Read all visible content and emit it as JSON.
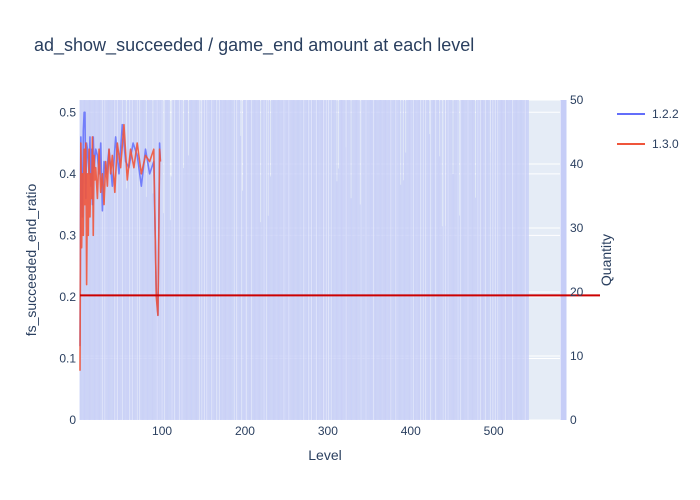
{
  "chart_data": {
    "type": "line",
    "title": "ad_show_succeeded / game_end amount at each level",
    "xlabel": "Level",
    "ylabel": "fs_succeeded_end_ratio",
    "y2label": "Quantity",
    "xlim": [
      1,
      580
    ],
    "ylim": [
      0,
      0.52
    ],
    "y2lim": [
      0,
      50
    ],
    "x_ticks": [
      "100",
      "200",
      "300",
      "400",
      "500"
    ],
    "y_ticks": [
      "0",
      "0.1",
      "0.2",
      "0.3",
      "0.4",
      "0.5"
    ],
    "y2_ticks": [
      "0",
      "10",
      "20",
      "30",
      "40",
      "50"
    ],
    "grid": true,
    "legend": "top-right",
    "colors": {
      "series_1_2_2": "#636efa",
      "series_1_3_0": "#ef553b",
      "quantity_bars": "#c6cdf7",
      "threshold_line": "#cc0000",
      "plot_bg": "#e5ecf6",
      "grid": "#ffffff"
    },
    "series": [
      {
        "name": "1.2.2",
        "axis": "y",
        "x": [
          1,
          2,
          3,
          4,
          5,
          6,
          7,
          8,
          9,
          10,
          11,
          12,
          13,
          14,
          15,
          16,
          17,
          18,
          20,
          22,
          24,
          26,
          28,
          30,
          33,
          36,
          40,
          44,
          48,
          52,
          56,
          60,
          65,
          70,
          75,
          80,
          85,
          90,
          93,
          95,
          96,
          97,
          98
        ],
        "y": [
          0.12,
          0.46,
          0.38,
          0.33,
          0.47,
          0.5,
          0.5,
          0.36,
          0.45,
          0.44,
          0.42,
          0.4,
          0.46,
          0.38,
          0.44,
          0.35,
          0.46,
          0.41,
          0.44,
          0.43,
          0.4,
          0.45,
          0.34,
          0.42,
          0.4,
          0.44,
          0.38,
          0.46,
          0.4,
          0.48,
          0.42,
          0.41,
          0.45,
          0.43,
          0.38,
          0.44,
          0.4,
          0.42,
          0.21,
          0.17,
          0.3,
          0.45,
          0.42
        ]
      },
      {
        "name": "1.3.0",
        "axis": "y",
        "x": [
          1,
          2,
          3,
          4,
          5,
          6,
          7,
          8,
          9,
          10,
          11,
          12,
          13,
          14,
          15,
          16,
          17,
          18,
          19,
          20,
          22,
          24,
          26,
          28,
          30,
          32,
          34,
          36,
          38,
          40,
          43,
          46,
          50,
          54,
          58,
          62,
          66,
          70,
          75,
          80,
          85,
          90,
          93,
          95,
          96,
          97,
          98
        ],
        "y": [
          0.08,
          0.45,
          0.28,
          0.4,
          0.3,
          0.44,
          0.35,
          0.45,
          0.22,
          0.4,
          0.3,
          0.44,
          0.33,
          0.4,
          0.36,
          0.46,
          0.3,
          0.43,
          0.39,
          0.41,
          0.36,
          0.44,
          0.37,
          0.4,
          0.35,
          0.42,
          0.38,
          0.44,
          0.4,
          0.43,
          0.37,
          0.45,
          0.41,
          0.48,
          0.39,
          0.44,
          0.41,
          0.45,
          0.4,
          0.43,
          0.42,
          0.44,
          0.2,
          0.17,
          0.29,
          0.44,
          0.42
        ]
      },
      {
        "name": "",
        "axis": "y",
        "type": "hline",
        "y_value": 0.2025
      }
    ],
    "bars": {
      "axis": "y2",
      "x_start": 1,
      "x_end": 542,
      "y_typical": 50
    }
  }
}
